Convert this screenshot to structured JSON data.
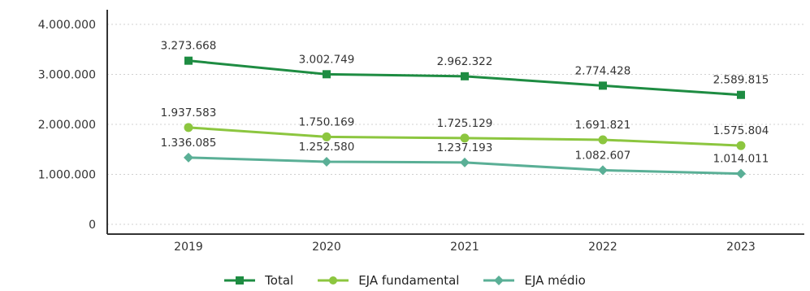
{
  "chart_data": {
    "type": "line",
    "categories": [
      "2019",
      "2020",
      "2021",
      "2022",
      "2023"
    ],
    "series": [
      {
        "name": "Total",
        "values": [
          3273668,
          3002749,
          2962322,
          2774428,
          2589815
        ],
        "labels": [
          "3.273.668",
          "3.002.749",
          "2.962.322",
          "2.774.428",
          "2.589.815"
        ],
        "color": "#1e8c42",
        "marker": "square"
      },
      {
        "name": "EJA fundamental",
        "values": [
          1937583,
          1750169,
          1725129,
          1691821,
          1575804
        ],
        "labels": [
          "1.937.583",
          "1.750.169",
          "1.725.129",
          "1.691.821",
          "1.575.804"
        ],
        "color": "#8cc63f",
        "marker": "circle"
      },
      {
        "name": "EJA médio",
        "values": [
          1336085,
          1252580,
          1237193,
          1082607,
          1014011
        ],
        "labels": [
          "1.336.085",
          "1.252.580",
          "1.237.193",
          "1.082.607",
          "1.014.011"
        ],
        "color": "#5aaf96",
        "marker": "diamond"
      }
    ],
    "ylim": [
      0,
      4000000
    ],
    "yticks": [
      0,
      1000000,
      2000000,
      3000000,
      4000000
    ],
    "ytick_labels": [
      "0",
      "1.000.000",
      "2.000.000",
      "3.000.000",
      "4.000.000"
    ],
    "grid": true,
    "legend_position": "bottom"
  }
}
